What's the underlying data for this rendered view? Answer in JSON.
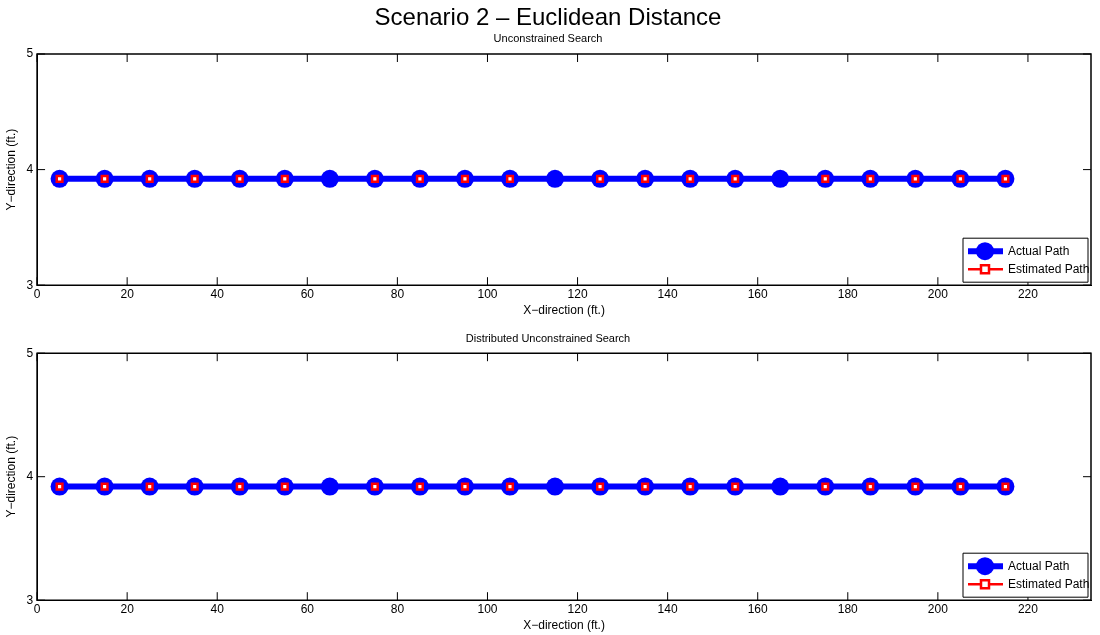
{
  "chart_data": [
    {
      "type": "line",
      "title": "Scenario 2 – Euclidean Distance",
      "subtitle": "Unconstrained Search",
      "xlabel": "X−direction (ft.)",
      "ylabel": "Y−direction (ft.)",
      "x": [
        5,
        15,
        25,
        35,
        45,
        55,
        65,
        75,
        85,
        95,
        105,
        115,
        125,
        135,
        145,
        155,
        165,
        175,
        185,
        195,
        205,
        215
      ],
      "series": [
        {
          "name": "Actual Path",
          "color": "#0000ff",
          "marker": "circle",
          "values": [
            3.92,
            3.92,
            3.92,
            3.92,
            3.92,
            3.92,
            3.92,
            3.92,
            3.92,
            3.92,
            3.92,
            3.92,
            3.92,
            3.92,
            3.92,
            3.92,
            3.92,
            3.92,
            3.92,
            3.92,
            3.92,
            3.92
          ]
        },
        {
          "name": "Estimated Path",
          "type": "scatter",
          "color": "#ff0000",
          "marker": "square",
          "values": [
            3.92,
            3.92,
            3.92,
            3.92,
            3.92,
            3.92,
            null,
            3.92,
            3.92,
            3.92,
            3.92,
            null,
            3.92,
            3.92,
            3.92,
            3.92,
            null,
            3.92,
            3.92,
            3.92,
            3.92,
            3.92
          ]
        }
      ],
      "xlim": [
        0,
        234
      ],
      "xticks": [
        0,
        20,
        40,
        60,
        80,
        100,
        120,
        140,
        160,
        180,
        200,
        220
      ],
      "ylim": [
        3,
        5
      ],
      "yticks": [
        3,
        4,
        5
      ],
      "grid": false,
      "legend": "bottom right"
    },
    {
      "type": "line",
      "subtitle": "Distributed Unconstrained Search",
      "xlabel": "X−direction (ft.)",
      "ylabel": "Y−direction (ft.)",
      "x": [
        5,
        15,
        25,
        35,
        45,
        55,
        65,
        75,
        85,
        95,
        105,
        115,
        125,
        135,
        145,
        155,
        165,
        175,
        185,
        195,
        205,
        215
      ],
      "series": [
        {
          "name": "Actual Path",
          "color": "#0000ff",
          "marker": "circle",
          "values": [
            3.92,
            3.92,
            3.92,
            3.92,
            3.92,
            3.92,
            3.92,
            3.92,
            3.92,
            3.92,
            3.92,
            3.92,
            3.92,
            3.92,
            3.92,
            3.92,
            3.92,
            3.92,
            3.92,
            3.92,
            3.92,
            3.92
          ]
        },
        {
          "name": "Estimated Path",
          "type": "scatter",
          "color": "#ff0000",
          "marker": "square",
          "values": [
            3.92,
            3.92,
            3.92,
            3.92,
            3.92,
            3.92,
            null,
            3.92,
            3.92,
            3.92,
            3.92,
            null,
            3.92,
            3.92,
            3.92,
            3.92,
            null,
            3.92,
            3.92,
            3.92,
            3.92,
            3.92
          ]
        }
      ],
      "xlim": [
        0,
        234
      ],
      "xticks": [
        0,
        20,
        40,
        60,
        80,
        100,
        120,
        140,
        160,
        180,
        200,
        220
      ],
      "ylim": [
        3,
        5
      ],
      "yticks": [
        3,
        4,
        5
      ],
      "grid": false,
      "legend": "bottom right"
    }
  ]
}
